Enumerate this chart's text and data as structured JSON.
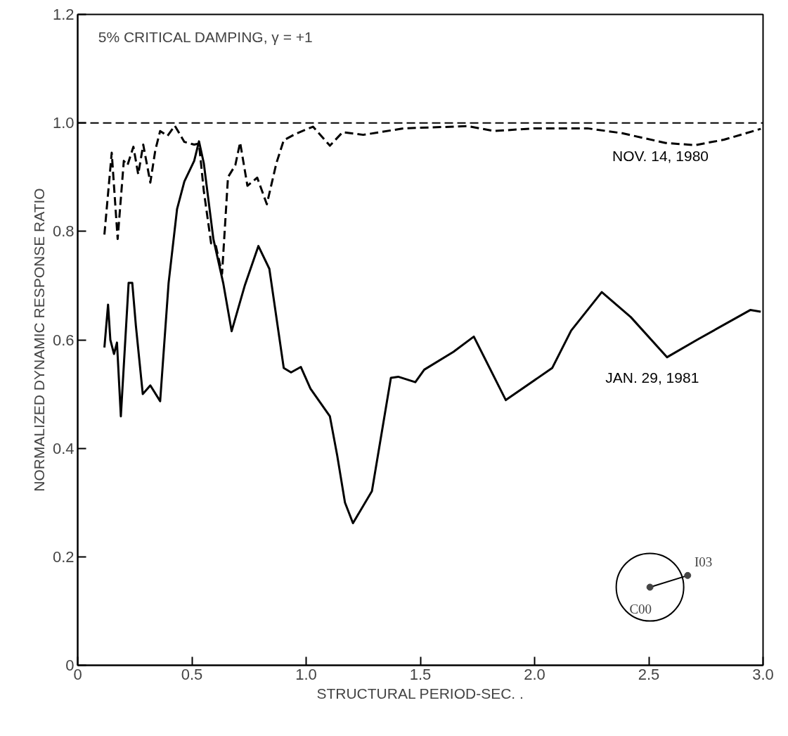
{
  "chart_data": {
    "type": "line",
    "title": "5% CRITICAL DAMPING, γ = +1",
    "xlabel": "STRUCTURAL PERIOD-SEC. .",
    "ylabel": "NORMALIZED DYNAMIC RESPONSE RATIO",
    "xlim": [
      0,
      3.0
    ],
    "ylim": [
      0,
      1.2
    ],
    "xticks": [
      0,
      {
        "value": 0.5,
        "label": "0.5"
      },
      {
        "value": 1.0,
        "label": "1.0"
      },
      {
        "value": 1.5,
        "label": "1.5"
      },
      {
        "value": 2.0,
        "label": "2.0"
      },
      {
        "value": 2.5,
        "label": "2.5"
      },
      {
        "value": 3.0,
        "label": "3.0"
      }
    ],
    "yticks": [
      0,
      0.2,
      0.4,
      0.6,
      0.8,
      {
        "value": 1.0,
        "label": "1.0"
      },
      1.2
    ],
    "grid": false,
    "marker": "none",
    "series": [
      {
        "name": "NOV. 14, 1980",
        "color": "#000000",
        "line_style": "dashed",
        "x": [
          0.117,
          0.149,
          0.175,
          0.202,
          0.218,
          0.244,
          0.265,
          0.287,
          0.318,
          0.34,
          0.361,
          0.393,
          0.425,
          0.467,
          0.51,
          0.531,
          0.552,
          0.584,
          0.605,
          0.632,
          0.658,
          0.69,
          0.711,
          0.743,
          0.786,
          0.828,
          0.87,
          0.902,
          0.955,
          1.03,
          1.104,
          1.16,
          1.25,
          1.428,
          1.708,
          1.823,
          2.0,
          2.231,
          2.383,
          2.574,
          2.702,
          2.829,
          2.99
        ],
        "values": [
          0.794,
          0.945,
          0.786,
          0.93,
          0.922,
          0.956,
          0.905,
          0.96,
          0.89,
          0.95,
          0.985,
          0.976,
          0.995,
          0.965,
          0.96,
          0.962,
          0.875,
          0.778,
          0.773,
          0.722,
          0.9,
          0.922,
          0.964,
          0.884,
          0.899,
          0.85,
          0.926,
          0.968,
          0.98,
          0.993,
          0.958,
          0.983,
          0.978,
          0.99,
          0.994,
          0.985,
          0.99,
          0.99,
          0.981,
          0.963,
          0.959,
          0.969,
          0.989
        ]
      },
      {
        "name": "JAN. 29, 1981",
        "color": "#000000",
        "line_style": "solid",
        "x": [
          0.117,
          0.133,
          0.143,
          0.159,
          0.172,
          0.189,
          0.223,
          0.239,
          0.255,
          0.285,
          0.318,
          0.361,
          0.398,
          0.435,
          0.467,
          0.51,
          0.531,
          0.552,
          0.594,
          0.637,
          0.674,
          0.732,
          0.791,
          0.839,
          0.902,
          0.934,
          0.977,
          1.019,
          1.104,
          1.136,
          1.17,
          1.205,
          1.288,
          1.371,
          1.403,
          1.478,
          1.517,
          1.645,
          1.734,
          1.874,
          2.077,
          2.16,
          2.294,
          2.421,
          2.58,
          2.715,
          2.944,
          2.99
        ],
        "values": [
          0.586,
          0.665,
          0.6,
          0.574,
          0.595,
          0.459,
          0.705,
          0.705,
          0.625,
          0.5,
          0.516,
          0.487,
          0.705,
          0.841,
          0.892,
          0.93,
          0.966,
          0.926,
          0.786,
          0.705,
          0.616,
          0.701,
          0.773,
          0.731,
          0.548,
          0.54,
          0.55,
          0.51,
          0.459,
          0.387,
          0.3,
          0.262,
          0.321,
          0.53,
          0.532,
          0.522,
          0.545,
          0.578,
          0.606,
          0.489,
          0.548,
          0.617,
          0.688,
          0.642,
          0.568,
          0.601,
          0.655,
          0.652
        ]
      }
    ],
    "ref_lines": [
      {
        "axis": "y",
        "value": 1.0,
        "line_style": "dashed",
        "color": "#000000"
      }
    ],
    "annotations": [
      "I03",
      "C00"
    ]
  }
}
